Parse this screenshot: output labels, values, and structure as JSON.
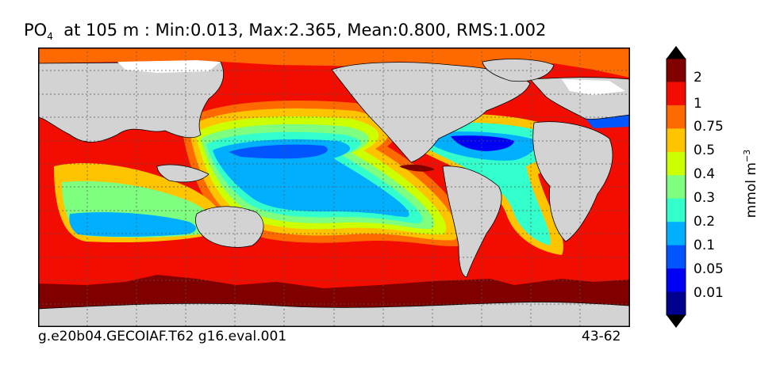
{
  "title": {
    "prefix": "PO",
    "subscript": "4",
    "suffix": "  at 105 m : Min:0.013, Max:2.365, Mean:0.800, RMS:1.002"
  },
  "footer": {
    "left": "g.e20b04.GECOIAF.T62 g16.eval.001",
    "right": "43-62"
  },
  "colorbar": {
    "units_base": "mmol m",
    "units_exp": "−3",
    "labels": [
      "2",
      "1",
      "0.75",
      "0.5",
      "0.4",
      "0.3",
      "0.2",
      "0.1",
      "0.05",
      "0.01"
    ],
    "colors": [
      "#800000",
      "#f20d00",
      "#ff6a00",
      "#ffc400",
      "#ccff00",
      "#7fff7f",
      "#33ffcc",
      "#00b0ff",
      "#0055ff",
      "#0000f5",
      "#00008f"
    ]
  },
  "colors": {
    "land": "#d3d3d3",
    "ice": "#ffffff",
    "grid": "#555555"
  }
}
